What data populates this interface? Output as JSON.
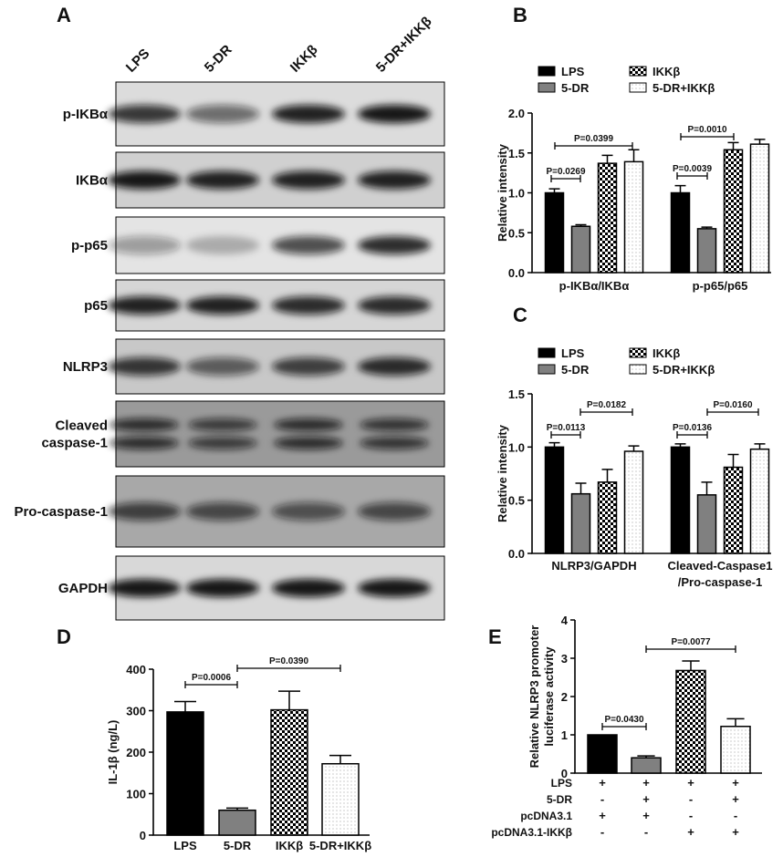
{
  "panel_labels": [
    "A",
    "B",
    "C",
    "D",
    "E"
  ],
  "blot": {
    "lanes": [
      "LPS",
      "5-DR",
      "IKKβ",
      "5-DR+IKKβ"
    ],
    "rows": [
      "p-IKBα",
      "IKBα",
      "p-p65",
      "p65",
      "NLRP3",
      "Cleaved\ncaspase-1",
      "Pro-caspase-1",
      "GAPDH"
    ]
  },
  "chart_data": [
    {
      "type": "grouped-bar",
      "ylabel": "Relative intensity",
      "categories": [
        "p-IKBα/IKBα",
        "p-p65/p65"
      ],
      "series": [
        {
          "name": "LPS",
          "fill": "#000000",
          "values": [
            1.0,
            1.0
          ],
          "errors": [
            0.05,
            0.09
          ]
        },
        {
          "name": "5-DR",
          "fill": "#808080",
          "values": [
            0.58,
            0.55
          ],
          "errors": [
            0.02,
            0.02
          ]
        },
        {
          "name": "IKKβ",
          "fill": "checker",
          "values": [
            1.37,
            1.54
          ],
          "errors": [
            0.1,
            0.09
          ]
        },
        {
          "name": "5-DR+IKKβ",
          "fill": "dots",
          "values": [
            1.39,
            1.61
          ],
          "errors": [
            0.15,
            0.06
          ]
        }
      ],
      "ylim": [
        0,
        2.0
      ],
      "yticks": [
        {
          "value": 0,
          "label": "0.0"
        },
        {
          "value": 0.5,
          "label": "0.5"
        },
        {
          "value": 1,
          "label": "1.0"
        },
        {
          "value": 1.5,
          "label": "1.5"
        },
        {
          "value": 2,
          "label": "2.0"
        }
      ],
      "annotations": [
        "P=0.0269",
        "P=0.0399",
        "P=0.0039",
        "P=0.0010"
      ]
    },
    {
      "type": "grouped-bar",
      "ylabel": "Relative intensity",
      "categories": [
        "NLRP3/GAPDH",
        "Cleaved-Caspase1\n/Pro-caspase-1"
      ],
      "series": [
        {
          "name": "LPS",
          "fill": "#000000",
          "values": [
            1.0,
            1.0
          ],
          "errors": [
            0.04,
            0.03
          ]
        },
        {
          "name": "5-DR",
          "fill": "#808080",
          "values": [
            0.56,
            0.55
          ],
          "errors": [
            0.1,
            0.12
          ]
        },
        {
          "name": "IKKβ",
          "fill": "checker",
          "values": [
            0.67,
            0.81
          ],
          "errors": [
            0.12,
            0.12
          ]
        },
        {
          "name": "5-DR+IKKβ",
          "fill": "dots",
          "values": [
            0.96,
            0.98
          ],
          "errors": [
            0.05,
            0.05
          ]
        }
      ],
      "ylim": [
        0,
        1.5
      ],
      "yticks": [
        {
          "value": 0,
          "label": "0.0"
        },
        {
          "value": 0.5,
          "label": "0.5"
        },
        {
          "value": 1,
          "label": "1.0"
        },
        {
          "value": 1.5,
          "label": "1.5"
        }
      ],
      "annotations": [
        "P=0.0113",
        "P=0.0182",
        "P=0.0136",
        "P=0.0160"
      ]
    },
    {
      "type": "bar",
      "ylabel": "IL-1β (ng/L)",
      "categories": [
        "LPS",
        "5-DR",
        "IKKβ",
        "5-DR+IKKβ"
      ],
      "values": [
        297,
        60,
        302,
        172
      ],
      "errors": [
        25,
        5,
        45,
        20
      ],
      "fills": [
        "#000000",
        "#808080",
        "checker",
        "dots"
      ],
      "ylim": [
        0,
        400
      ],
      "yticks": [
        0,
        100,
        200,
        300,
        400
      ],
      "annotations": [
        "P=0.0006",
        "P=0.0390"
      ]
    },
    {
      "type": "bar",
      "ylabel": "Relative NLRP3 promoter\nluciferase activity",
      "values": [
        1.0,
        0.4,
        2.68,
        1.22
      ],
      "errors": [
        0,
        0.05,
        0.25,
        0.2
      ],
      "fills": [
        "#000000",
        "#808080",
        "checker",
        "dots"
      ],
      "ylim": [
        0,
        4
      ],
      "yticks": [
        0,
        1,
        2,
        3,
        4
      ],
      "annotations": [
        "P=0.0430",
        "P=0.0077"
      ],
      "treatments": [
        {
          "name": "LPS",
          "marks": [
            "+",
            "+",
            "+",
            "+"
          ]
        },
        {
          "name": "5-DR",
          "marks": [
            "-",
            "+",
            "-",
            "+"
          ]
        },
        {
          "name": "pcDNA3.1",
          "marks": [
            "+",
            "+",
            "-",
            "-"
          ]
        },
        {
          "name": "pcDNA3.1-IKKβ",
          "marks": [
            "-",
            "-",
            "+",
            "+"
          ]
        }
      ]
    }
  ]
}
